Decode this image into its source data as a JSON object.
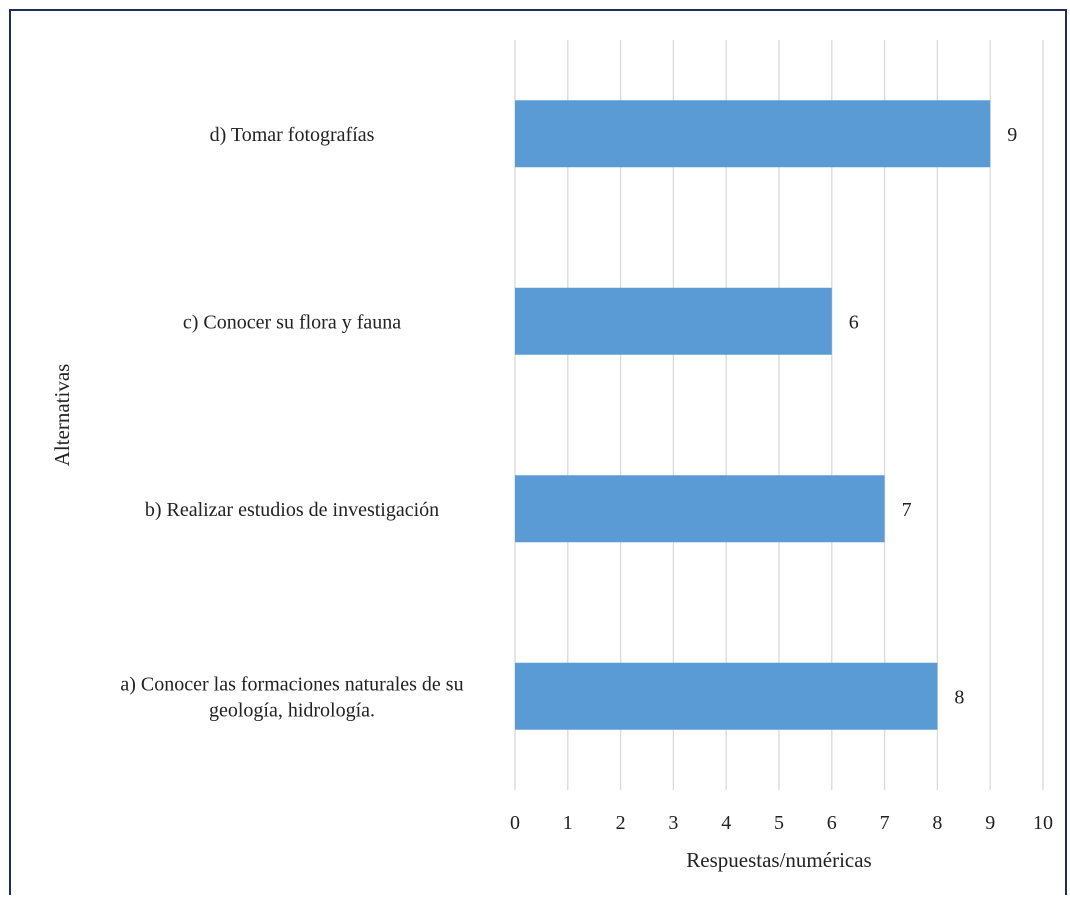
{
  "chart_data": {
    "type": "bar",
    "orientation": "horizontal",
    "categories": [
      [
        "a) Conocer las formaciones naturales de su",
        "geología, hidrología."
      ],
      [
        "b) Realizar estudios de investigación"
      ],
      [
        "c) Conocer su flora y fauna"
      ],
      [
        "d) Tomar fotografías"
      ]
    ],
    "values": [
      8,
      7,
      6,
      9
    ],
    "data_labels": [
      "8",
      "7",
      "6",
      "9"
    ],
    "xlabel": "Respuestas/numéricas",
    "ylabel": "Alternativas",
    "xlim": [
      0,
      10
    ],
    "xticks": [
      "0",
      "1",
      "2",
      "3",
      "4",
      "5",
      "6",
      "7",
      "8",
      "9",
      "10"
    ],
    "grid": "vertical",
    "legend": "none",
    "bar_color": "#5b9bd5",
    "grid_color": "#d9d9d9",
    "frame_color": "#1f2d5a"
  }
}
